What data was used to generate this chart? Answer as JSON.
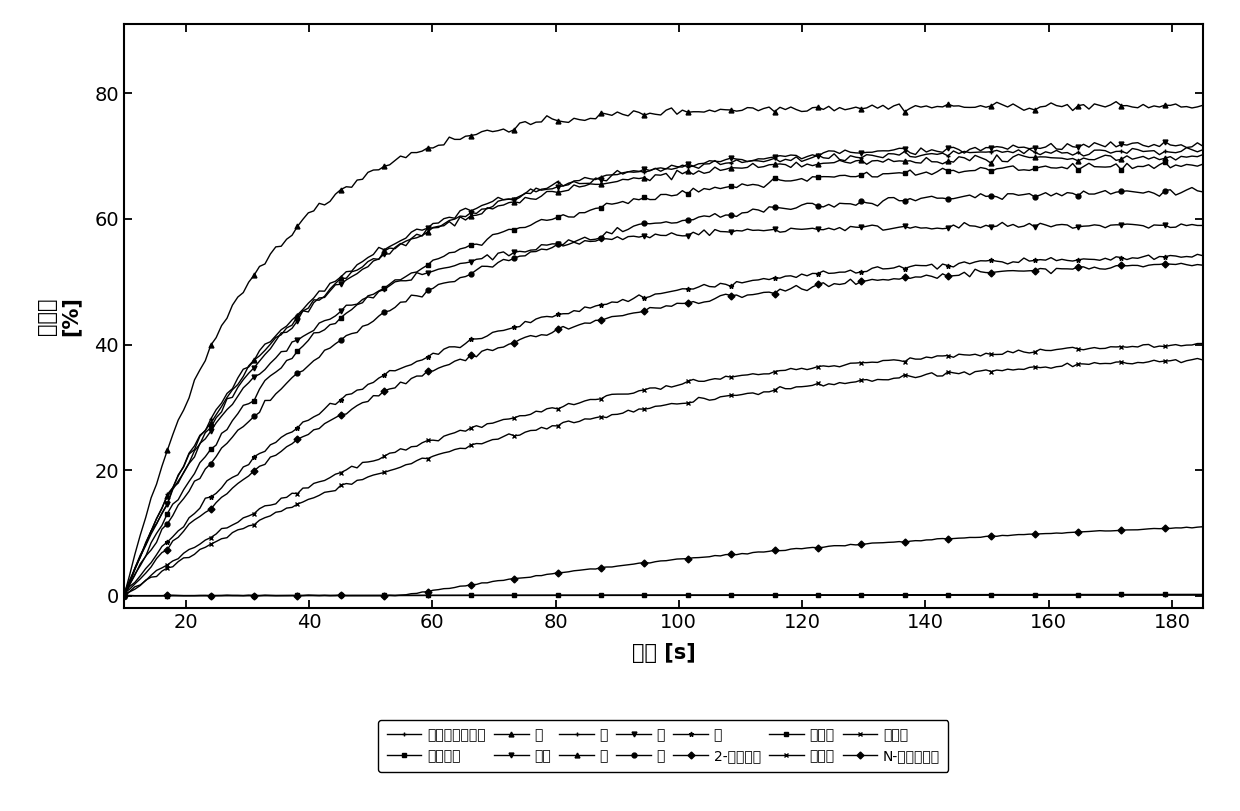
{
  "xlabel": "时间 [s]",
  "ylabel": "转化率 [%]",
  "xlim": [
    10,
    185
  ],
  "ylim": [
    -2,
    91
  ],
  "xticks": [
    20,
    40,
    60,
    80,
    100,
    120,
    140,
    160,
    180
  ],
  "yticks": [
    0,
    20,
    40,
    60,
    80
  ],
  "background_color": "#ffffff",
  "line_color": "#000000",
  "line_width": 1.0,
  "marker_size": 3.5,
  "font_size": 14,
  "legend_font_size": 10,
  "series": [
    {
      "label": "无光照无光敏剂",
      "marker": "+",
      "tau": 400,
      "final": 0.25,
      "delay": 0
    },
    {
      "label": "无光敏剂",
      "marker": "s",
      "tau": 500,
      "final": 0.7,
      "delay": 0
    },
    {
      "label": "萸",
      "marker": "^",
      "tau": 20,
      "final": 78,
      "delay": 0
    },
    {
      "label": "联苯",
      "marker": "v",
      "tau": 24,
      "final": 59,
      "delay": 0
    },
    {
      "label": "菲",
      "marker": "+",
      "tau": 28,
      "final": 71,
      "delay": 0
    },
    {
      "label": "莘",
      "marker": "^",
      "tau": 28,
      "final": 70,
      "delay": 0
    },
    {
      "label": "董",
      "marker": "v",
      "tau": 30,
      "final": 72,
      "delay": 0
    },
    {
      "label": "花",
      "marker": "o",
      "tau": 36,
      "final": 65,
      "delay": 0
    },
    {
      "label": "花",
      "marker": "*",
      "tau": 42,
      "final": 55,
      "delay": 0
    },
    {
      "label": "2-氯咔唷嘎",
      "marker": "D",
      "tau": 46,
      "final": 54,
      "delay": 0
    },
    {
      "label": "咔唷嘎",
      "marker": "s",
      "tau": 34,
      "final": 69,
      "delay": 0
    },
    {
      "label": "甲萸酶",
      "marker": "x",
      "tau": 56,
      "final": 42,
      "delay": 0
    },
    {
      "label": "樟脑酶",
      "marker": "x",
      "tau": 62,
      "final": 40,
      "delay": 0
    },
    {
      "label": "N-乙烯基咊呀",
      "marker": "D",
      "tau": 85,
      "final": 14,
      "delay": 45
    }
  ]
}
